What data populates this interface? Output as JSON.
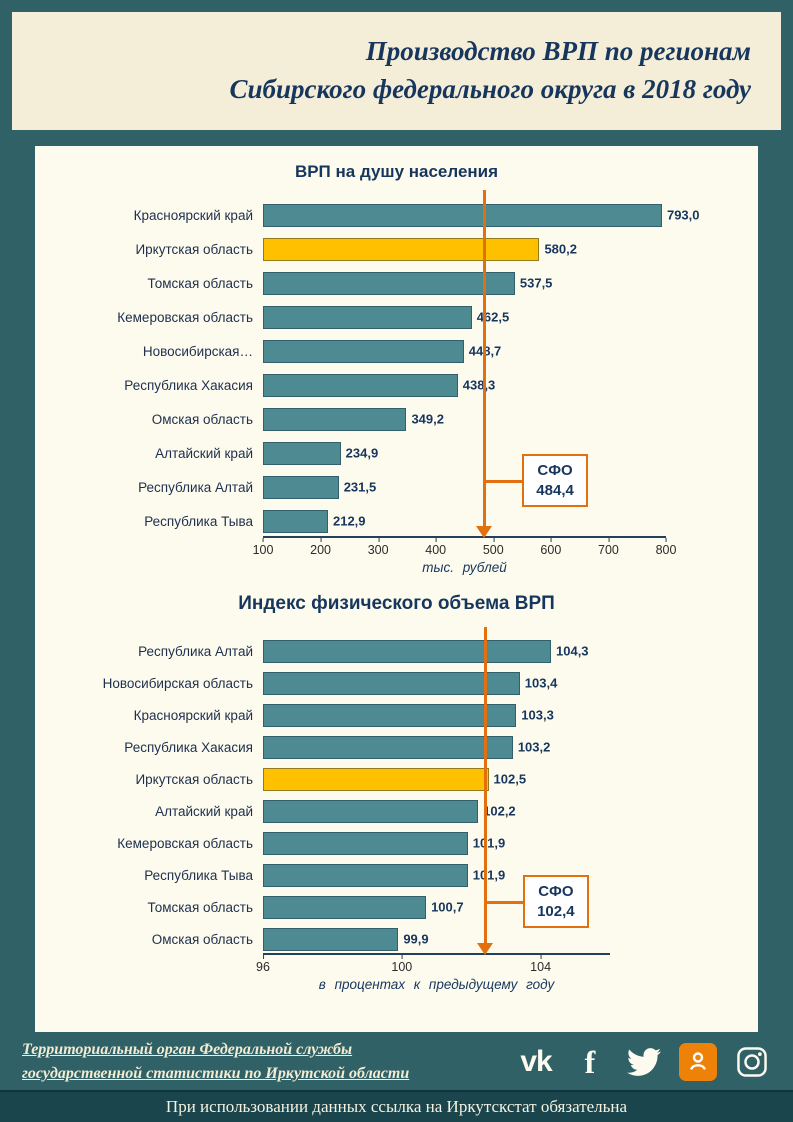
{
  "header": {
    "title_line1": "Производство ВРП по регионам",
    "title_line2": "Сибирского федерального округа в 2018 году"
  },
  "chart_data": [
    {
      "type": "bar",
      "orientation": "horizontal",
      "title": "ВРП на душу населения",
      "categories": [
        "Красноярский край",
        "Иркутская область",
        "Томская область",
        "Кемеровская область",
        "Новосибирская…",
        "Республика Хакасия",
        "Омская область",
        "Алтайский край",
        "Республика Алтай",
        "Республика Тыва"
      ],
      "values": [
        793.0,
        580.2,
        537.5,
        462.5,
        448.7,
        438.3,
        349.2,
        234.9,
        231.5,
        212.9
      ],
      "value_labels": [
        "793,0",
        "580,2",
        "537,5",
        "462,5",
        "448,7",
        "438,3",
        "349,2",
        "234,9",
        "231,5",
        "212,9"
      ],
      "highlight_category": "Иркутская область",
      "xlabel": "тыс. рублей",
      "xlim": [
        100,
        800
      ],
      "xticks": [
        100,
        200,
        300,
        400,
        500,
        600,
        700,
        800
      ],
      "grid": false,
      "legend": false,
      "reference": {
        "label": "СФО",
        "value": 484.4,
        "value_label": "484,4"
      }
    },
    {
      "type": "bar",
      "orientation": "horizontal",
      "title": "Индекс физического объема ВРП",
      "categories": [
        "Республика Алтай",
        "Новосибирская область",
        "Красноярский край",
        "Республика Хакасия",
        "Иркутская область",
        "Алтайский край",
        "Кемеровская область",
        "Республика Тыва",
        "Томская область",
        "Омская область"
      ],
      "values": [
        104.3,
        103.4,
        103.3,
        103.2,
        102.5,
        102.2,
        101.9,
        101.9,
        100.7,
        99.9
      ],
      "value_labels": [
        "104,3",
        "103,4",
        "103,3",
        "103,2",
        "102,5",
        "102,2",
        "101,9",
        "101,9",
        "100,7",
        "99,9"
      ],
      "highlight_category": "Иркутская область",
      "xlabel": "в процентах к предыдущему году",
      "xlim": [
        96,
        106
      ],
      "xticks": [
        96,
        100,
        104
      ],
      "grid": false,
      "legend": false,
      "reference": {
        "label": "СФО",
        "value": 102.4,
        "value_label": "102,4"
      }
    }
  ],
  "footer": {
    "org_line1": "Территориальный орган Федеральной службы",
    "org_line2": "государственной статистики по Иркутской области",
    "vk_glyph": "vk",
    "facebook_glyph": "f",
    "icon_names": [
      "vk-icon",
      "facebook-icon",
      "twitter-icon",
      "odnoklassniki-icon",
      "instagram-icon"
    ],
    "note": "При использовании данных ссылка на Иркутскстат обязательна"
  },
  "colors": {
    "frame": "#2f6167",
    "header_panel": "#f4eed8",
    "content_panel": "#fdfbee",
    "bar": "#4e8a92",
    "highlight": "#ffc000",
    "arrow": "#e3700e",
    "title_text": "#17365d",
    "odnoklassniki": "#ee8208",
    "bottom_bar": "#1a454d"
  }
}
